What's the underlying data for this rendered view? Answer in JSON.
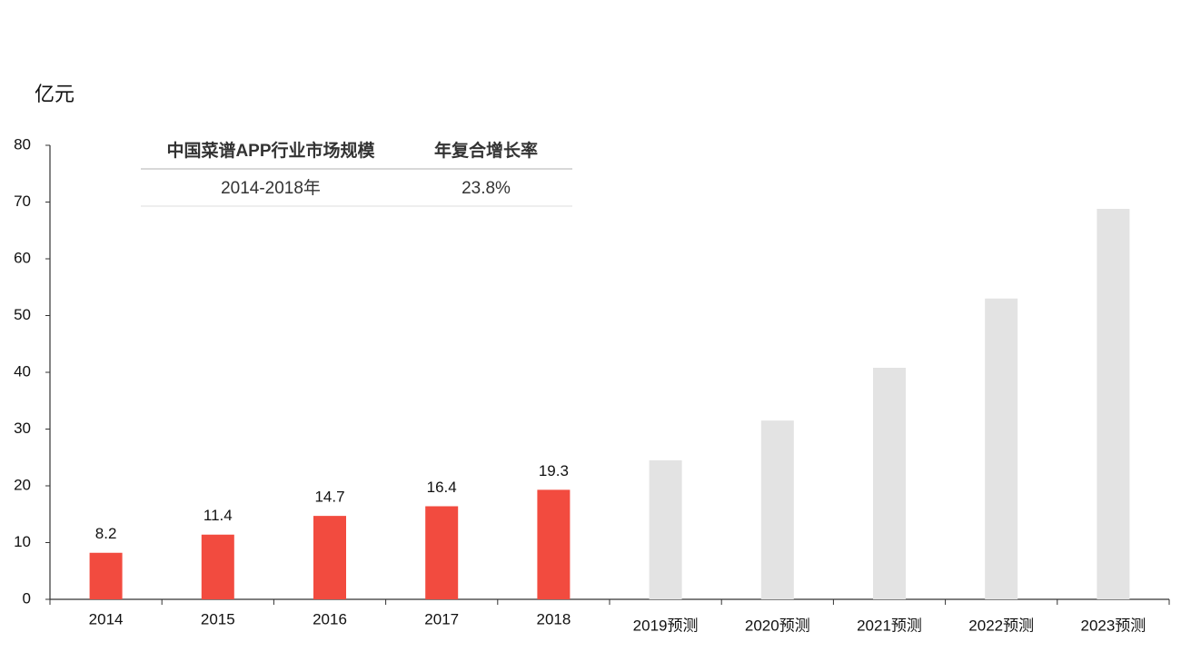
{
  "chart_data": {
    "type": "bar",
    "unit": "亿元",
    "categories": [
      "2014",
      "2015",
      "2016",
      "2017",
      "2018",
      "2019预测",
      "2020预测",
      "2021预测",
      "2022预测",
      "2023预测"
    ],
    "values": [
      8.2,
      11.4,
      14.7,
      16.4,
      19.3,
      24.5,
      31.5,
      40.8,
      53.0,
      68.8
    ],
    "value_labels": [
      "8.2",
      "11.4",
      "14.7",
      "16.4",
      "19.3",
      null,
      null,
      null,
      null,
      null
    ],
    "colors": [
      "#f24b3f",
      "#f24b3f",
      "#f24b3f",
      "#f24b3f",
      "#f24b3f",
      "#e3e3e3",
      "#e3e3e3",
      "#e3e3e3",
      "#e3e3e3",
      "#e3e3e3"
    ],
    "ylim": [
      0,
      80
    ],
    "yticks": [
      0,
      10,
      20,
      30,
      40,
      50,
      60,
      70,
      80
    ],
    "grid": false
  },
  "table": {
    "header": [
      "中国菜谱APP行业市场规模",
      "年复合增长率"
    ],
    "rows": [
      [
        "2014-2018年",
        "23.8%"
      ]
    ]
  }
}
